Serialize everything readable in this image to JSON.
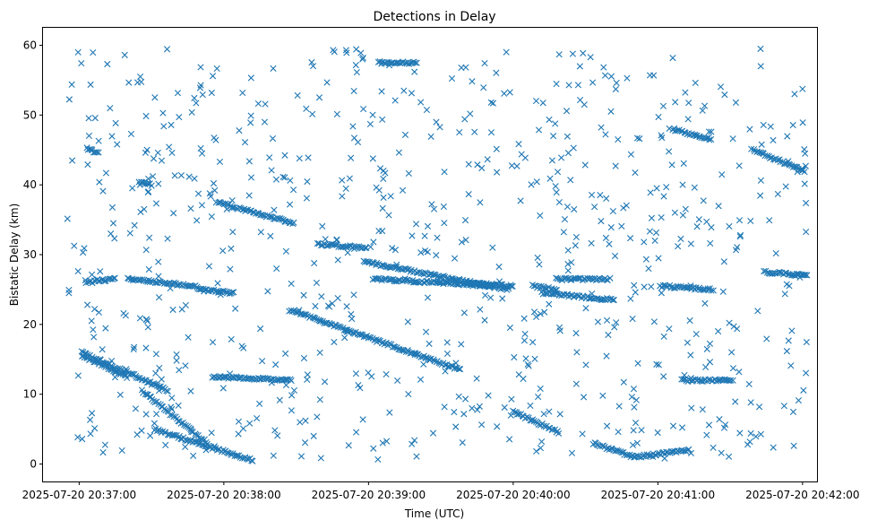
{
  "chart_data": {
    "type": "scatter",
    "title": "Detections in Delay",
    "xlabel": "Time (UTC)",
    "ylabel": "Bistatic Delay (km)",
    "x_ticks": [
      "2025-07-20 20:37:00",
      "2025-07-20 20:38:00",
      "2025-07-20 20:39:00",
      "2025-07-20 20:40:00",
      "2025-07-20 20:41:00",
      "2025-07-20 20:42:00"
    ],
    "x_tick_seconds": [
      60,
      120,
      180,
      240,
      300,
      360
    ],
    "x_tick_base": "2025-07-20 20:36:00",
    "xlim_seconds": [
      45,
      366
    ],
    "ylim": [
      -2.5,
      62.5
    ],
    "y_ticks": [
      0,
      10,
      20,
      30,
      40,
      50,
      60
    ],
    "marker": "x",
    "color": "#1f77b4",
    "grid": false,
    "legend": "none",
    "tracks": [
      {
        "from": [
          61,
          16
        ],
        "to": [
          97,
          10.5
        ]
      },
      {
        "from": [
          61,
          15.5
        ],
        "to": [
          80,
          12.5
        ]
      },
      {
        "from": [
          91,
          5
        ],
        "to": [
          132,
          0.5
        ]
      },
      {
        "from": [
          86,
          10.5
        ],
        "to": [
          113,
          3
        ]
      },
      {
        "from": [
          117,
          37.5
        ],
        "to": [
          149,
          34.5
        ]
      },
      {
        "from": [
          115,
          12.5
        ],
        "to": [
          148,
          12
        ]
      },
      {
        "from": [
          148,
          22
        ],
        "to": [
          218,
          13.5
        ]
      },
      {
        "from": [
          178,
          29
        ],
        "to": [
          238,
          25
        ]
      },
      {
        "from": [
          220,
          26
        ],
        "to": [
          240,
          25.5
        ]
      },
      {
        "from": [
          159,
          31.5
        ],
        "to": [
          179,
          31
        ]
      },
      {
        "from": [
          182,
          26.5
        ],
        "to": [
          232,
          25.5
        ]
      },
      {
        "from": [
          240,
          7.5
        ],
        "to": [
          259,
          4.5
        ]
      },
      {
        "from": [
          273,
          3
        ],
        "to": [
          290,
          1
        ]
      },
      {
        "from": [
          290,
          1
        ],
        "to": [
          313,
          2
        ]
      },
      {
        "from": [
          306,
          48
        ],
        "to": [
          322,
          46.5
        ]
      },
      {
        "from": [
          339,
          45
        ],
        "to": [
          361,
          42
        ]
      },
      {
        "from": [
          80,
          26.5
        ],
        "to": [
          109,
          25.5
        ]
      },
      {
        "from": [
          109,
          25
        ],
        "to": [
          124,
          24.5
        ]
      },
      {
        "from": [
          252,
          24.5
        ],
        "to": [
          282,
          23.5
        ]
      },
      {
        "from": [
          301,
          25.5
        ],
        "to": [
          323,
          25
        ]
      },
      {
        "from": [
          310,
          12
        ],
        "to": [
          331,
          12
        ]
      },
      {
        "from": [
          63,
          26
        ],
        "to": [
          75,
          26.5
        ]
      },
      {
        "from": [
          258,
          26.5
        ],
        "to": [
          280,
          26.5
        ]
      },
      {
        "from": [
          344,
          27.5
        ],
        "to": [
          362,
          27
        ]
      },
      {
        "from": [
          85,
          40.5
        ],
        "to": [
          90,
          40
        ]
      },
      {
        "from": [
          184,
          57.5
        ],
        "to": [
          200,
          57.5
        ]
      },
      {
        "from": [
          248,
          25.5
        ],
        "to": [
          258,
          25
        ]
      },
      {
        "from": [
          63,
          45.2
        ],
        "to": [
          68,
          44.5
        ]
      }
    ],
    "noise_count": 760,
    "noise_range_seconds": [
      55,
      362
    ],
    "noise_range_delay": [
      0.5,
      59.5
    ]
  }
}
